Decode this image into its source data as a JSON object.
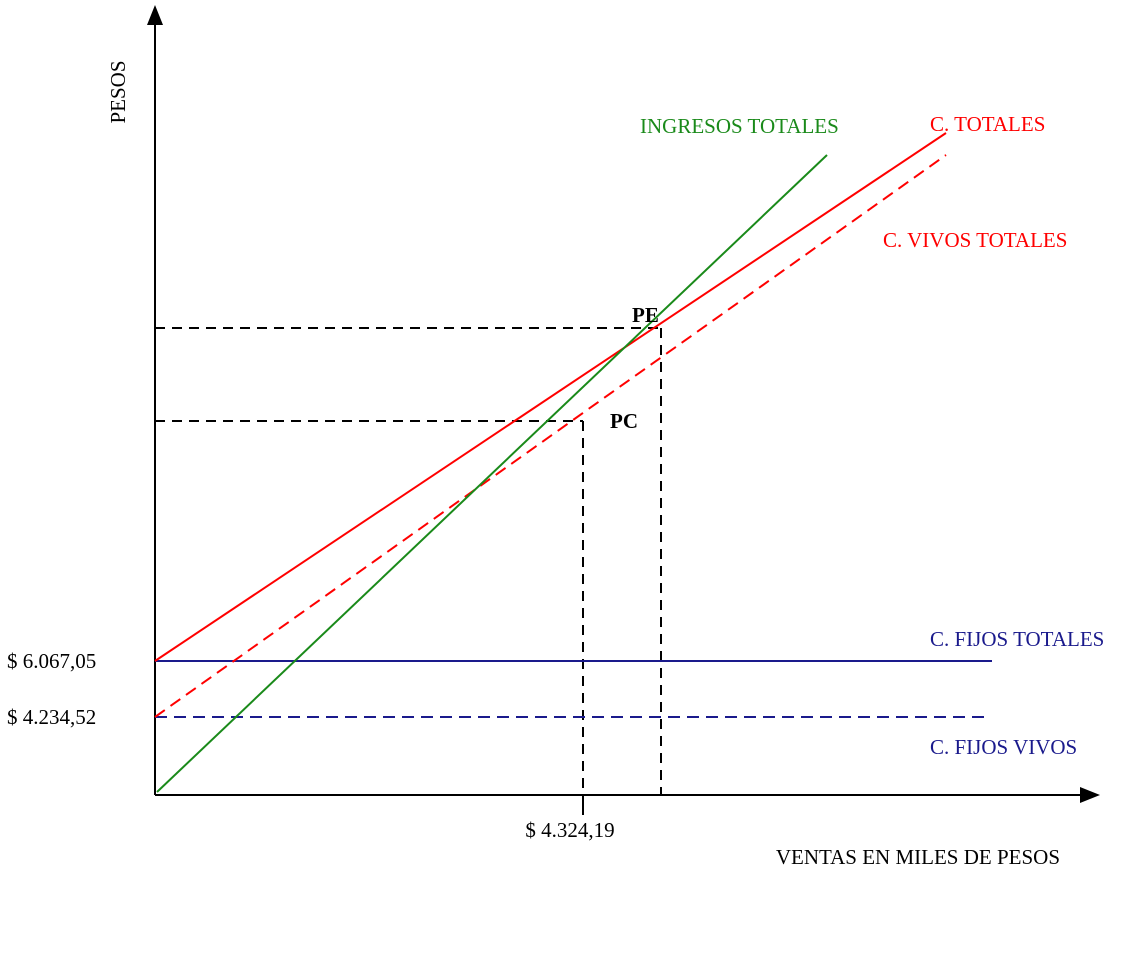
{
  "chart_data": {
    "type": "line",
    "xlabel": "VENTAS EN MILES DE PESOS",
    "ylabel": "PESOS",
    "y_ticks": [
      {
        "value": 6067.05,
        "label": "$ 6.067,05"
      },
      {
        "value": 4234.52,
        "label": "$ 4.234,52"
      }
    ],
    "x_ticks": [
      {
        "value": 4324.19,
        "label": "$ 4.324,19"
      }
    ],
    "series": [
      {
        "name": "INGRESOS TOTALES",
        "color": "#1a8a1a",
        "style": "solid"
      },
      {
        "name": "C. TOTALES",
        "color": "#ff0000",
        "style": "solid"
      },
      {
        "name": "C. VIVOS TOTALES",
        "color": "#ff0000",
        "style": "dashed"
      },
      {
        "name": "C. FIJOS TOTALES",
        "color": "#1a1a8c",
        "style": "solid"
      },
      {
        "name": "C. FIJOS VIVOS",
        "color": "#1a1a8c",
        "style": "dashed"
      }
    ],
    "points": [
      {
        "name": "PE"
      },
      {
        "name": "PC"
      }
    ],
    "colors": {
      "axis": "#000000",
      "ingresos": "#1a8a1a",
      "costos": "#ff0000",
      "fijos": "#1a1a8c",
      "guides": "#000000"
    }
  }
}
